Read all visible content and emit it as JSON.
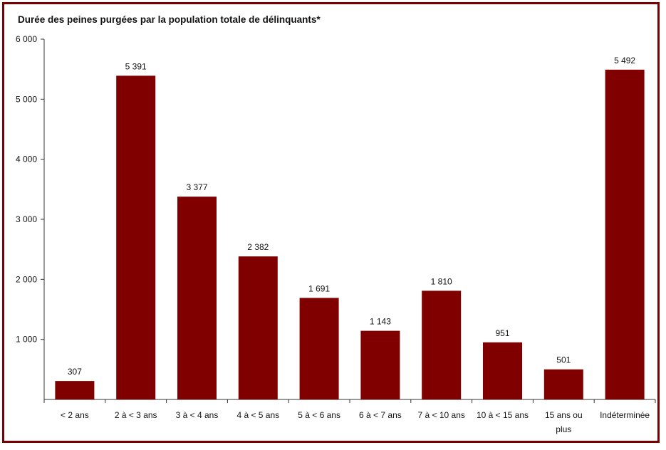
{
  "chart_data": {
    "type": "bar",
    "title": "Durée des peines purgées par la population totale de délinquants*",
    "xlabel": "",
    "ylabel": "",
    "ylim": [
      0,
      6000
    ],
    "yticks": [
      "1 000",
      "2 000",
      "3 000",
      "4 000",
      "5 000",
      "6 000"
    ],
    "ytick_values": [
      1000,
      2000,
      3000,
      4000,
      5000,
      6000
    ],
    "categories": [
      [
        "< 2 ans"
      ],
      [
        "2 à < 3 ans"
      ],
      [
        "3 à < 4 ans"
      ],
      [
        "4 à < 5 ans"
      ],
      [
        "5 à < 6 ans"
      ],
      [
        "6 à < 7 ans"
      ],
      [
        "7 à < 10 ans"
      ],
      [
        "10 à < 15 ans"
      ],
      [
        "15 ans ou",
        "plus"
      ],
      [
        "Indéterminée"
      ]
    ],
    "values": [
      307,
      5391,
      3377,
      2382,
      1691,
      1143,
      1810,
      951,
      501,
      5492
    ],
    "value_labels": [
      "307",
      "5 391",
      "3 377",
      "2 382",
      "1 691",
      "1 143",
      "1 810",
      "951",
      "501",
      "5 492"
    ],
    "bar_color": "#800000",
    "grid": false,
    "legend": "none"
  }
}
